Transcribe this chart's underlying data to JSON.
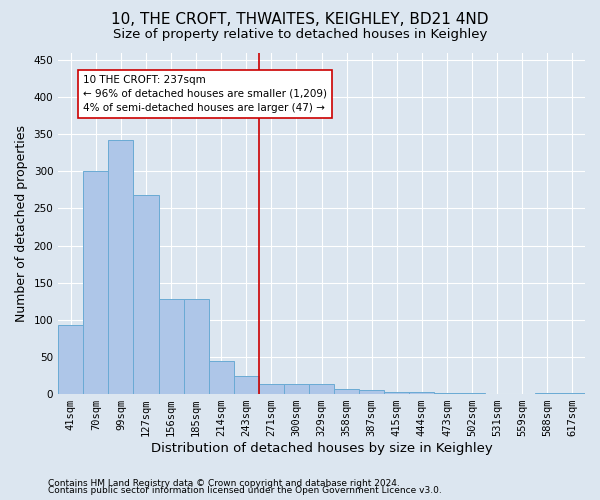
{
  "title": "10, THE CROFT, THWAITES, KEIGHLEY, BD21 4ND",
  "subtitle": "Size of property relative to detached houses in Keighley",
  "xlabel": "Distribution of detached houses by size in Keighley",
  "ylabel": "Number of detached properties",
  "footnote1": "Contains HM Land Registry data © Crown copyright and database right 2024.",
  "footnote2": "Contains public sector information licensed under the Open Government Licence v3.0.",
  "categories": [
    "41sqm",
    "70sqm",
    "99sqm",
    "127sqm",
    "156sqm",
    "185sqm",
    "214sqm",
    "243sqm",
    "271sqm",
    "300sqm",
    "329sqm",
    "358sqm",
    "387sqm",
    "415sqm",
    "444sqm",
    "473sqm",
    "502sqm",
    "531sqm",
    "559sqm",
    "588sqm",
    "617sqm"
  ],
  "values": [
    93,
    301,
    342,
    268,
    128,
    128,
    45,
    24,
    14,
    14,
    14,
    7,
    5,
    3,
    3,
    1,
    1,
    0,
    0,
    1,
    1
  ],
  "bar_color": "#aec6e8",
  "bar_edge_color": "#6aaad4",
  "property_line_x": 7.5,
  "property_line_color": "#cc0000",
  "annotation_text": "10 THE CROFT: 237sqm\n← 96% of detached houses are smaller (1,209)\n4% of semi-detached houses are larger (47) →",
  "annotation_box_color": "#ffffff",
  "annotation_box_edge_color": "#cc0000",
  "ylim": [
    0,
    460
  ],
  "yticks": [
    0,
    50,
    100,
    150,
    200,
    250,
    300,
    350,
    400,
    450
  ],
  "background_color": "#dce6f0",
  "plot_background_color": "#dce6f0",
  "title_fontsize": 11,
  "subtitle_fontsize": 9.5,
  "tick_fontsize": 7.5,
  "ylabel_fontsize": 9,
  "xlabel_fontsize": 9.5,
  "footnote_fontsize": 6.5
}
